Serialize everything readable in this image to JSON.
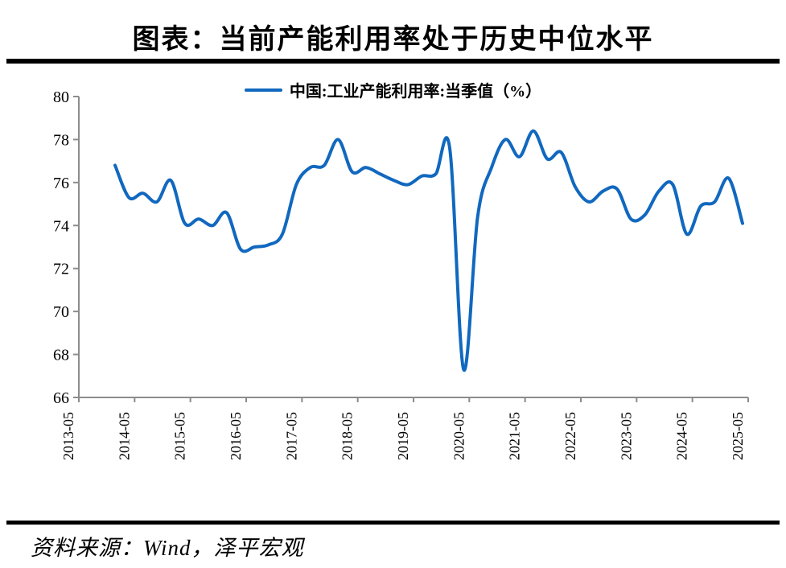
{
  "header": {
    "title": "图表：当前产能利用率处于历史中位水平"
  },
  "legend": {
    "label": "中国:工业产能利用率:当季值（%）"
  },
  "footer": {
    "source": "资料来源：Wind，泽平宏观"
  },
  "colors": {
    "line": "#1168BF",
    "axis": "#8C8C8C",
    "rule": "#000000",
    "text": "#000000"
  },
  "chart_data": {
    "type": "line",
    "title": "当前产能利用率处于历史中位水平",
    "xlabel": "",
    "ylabel": "",
    "ylim": [
      66,
      80
    ],
    "grid": false,
    "legend_position": "top-center",
    "y_axis": {
      "ticks": [
        80,
        78,
        76,
        74,
        72,
        70,
        68,
        66
      ]
    },
    "x_axis": {
      "tick_labels": [
        "2013-05",
        "2014-05",
        "2015-05",
        "2016-05",
        "2017-05",
        "2018-05",
        "2019-05",
        "2020-05",
        "2021-05",
        "2022-05",
        "2023-05",
        "2024-05",
        "2025-05"
      ]
    },
    "series": [
      {
        "name": "中国:工业产能利用率:当季值（%）",
        "color": "#1168BF",
        "x": [
          "2013-12",
          "2014-03",
          "2014-06",
          "2014-09",
          "2014-12",
          "2015-03",
          "2015-06",
          "2015-09",
          "2015-12",
          "2016-03",
          "2016-06",
          "2016-09",
          "2016-12",
          "2017-03",
          "2017-06",
          "2017-09",
          "2017-12",
          "2018-03",
          "2018-06",
          "2018-09",
          "2018-12",
          "2019-03",
          "2019-06",
          "2019-09",
          "2019-12",
          "2020-03",
          "2020-06",
          "2020-09",
          "2020-12",
          "2021-03",
          "2021-06",
          "2021-09",
          "2021-12",
          "2022-03",
          "2022-06",
          "2022-09",
          "2022-12",
          "2023-03",
          "2023-06",
          "2023-09",
          "2023-12",
          "2024-03",
          "2024-06",
          "2024-09",
          "2024-12",
          "2025-03"
        ],
        "values": [
          76.8,
          75.3,
          75.5,
          75.1,
          76.1,
          74.1,
          74.3,
          74.0,
          74.6,
          72.9,
          73.0,
          73.1,
          73.6,
          75.9,
          76.7,
          76.8,
          78.0,
          76.5,
          76.7,
          76.4,
          76.1,
          75.9,
          76.3,
          76.4,
          77.6,
          67.3,
          74.4,
          76.7,
          78.0,
          77.2,
          78.4,
          77.1,
          77.4,
          75.8,
          75.1,
          75.6,
          75.7,
          74.3,
          74.5,
          75.6,
          75.9,
          73.6,
          74.9,
          75.1,
          76.2,
          74.1
        ]
      }
    ]
  }
}
